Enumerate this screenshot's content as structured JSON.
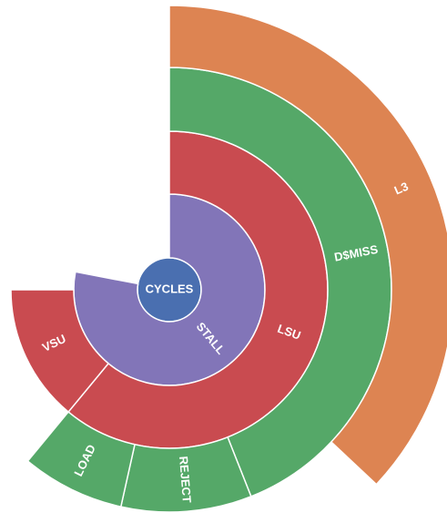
{
  "chart_data": {
    "type": "sunburst",
    "root": {
      "name": "CYCLES",
      "value": 100,
      "color": "#4a6fb0",
      "children": [
        {
          "name": "STALL",
          "value": 78,
          "color": "#8275b8",
          "children": [
            {
              "name": "LSU",
              "value": 61,
              "color": "#c94b50",
              "children": [
                {
                  "name": "D$MISS",
                  "value": 44,
                  "color": "#55a868",
                  "children": [
                    {
                      "name": "L3",
                      "value": 37,
                      "color": "#dd8452"
                    }
                  ]
                },
                {
                  "name": "REJECT",
                  "value": 9.5,
                  "color": "#55a868"
                },
                {
                  "name": "LOAD",
                  "value": 7.5,
                  "color": "#55a868"
                }
              ]
            },
            {
              "name": "VSU",
              "value": 14,
              "color": "#c94b50"
            }
          ]
        }
      ]
    }
  }
}
